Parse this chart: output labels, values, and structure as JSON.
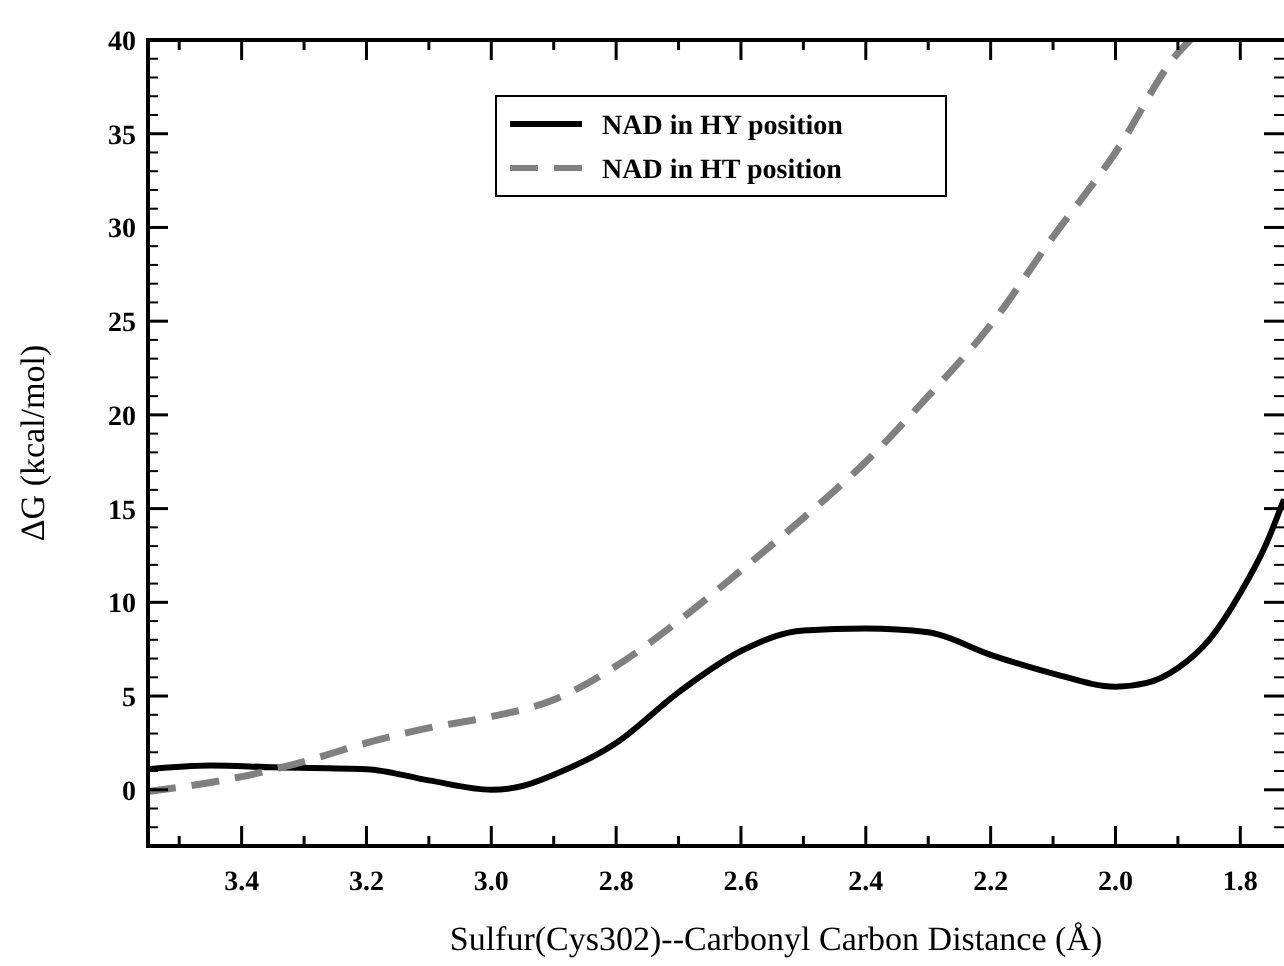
{
  "chart_data": {
    "type": "line",
    "xlabel": "Sulfur(Cys302)--Carbonyl Carbon Distance (Å)",
    "ylabel": "ΔG (kcal/mol)",
    "xlim": [
      3.55,
      1.73
    ],
    "ylim": [
      -3,
      40
    ],
    "xticks": [
      {
        "value": 3.5,
        "label": null
      },
      3.4,
      {
        "value": 3.3,
        "label": null
      },
      3.2,
      {
        "value": 3.1,
        "label": null
      },
      {
        "value": 3.0,
        "label": "3.0"
      },
      {
        "value": 2.9,
        "label": null
      },
      2.8,
      {
        "value": 2.7,
        "label": null
      },
      2.6,
      {
        "value": 2.5,
        "label": null
      },
      2.4,
      {
        "value": 2.3,
        "label": null
      },
      2.2,
      {
        "value": 2.1,
        "label": null
      },
      {
        "value": 2.0,
        "label": "2.0"
      },
      {
        "value": 1.9,
        "label": null
      },
      1.8
    ],
    "yticks": [
      0,
      5,
      10,
      15,
      20,
      25,
      30,
      35,
      40
    ],
    "legend": "top",
    "grid": false,
    "series": [
      {
        "name": "NAD in HY position",
        "color": "#000000",
        "line_style": "solid",
        "x": [
          3.55,
          3.45,
          3.35,
          3.2,
          3.1,
          3.0,
          2.95,
          2.9,
          2.8,
          2.7,
          2.6,
          2.5,
          2.4,
          2.3,
          2.2,
          2.1,
          2.0,
          1.95,
          1.9,
          1.85,
          1.8,
          1.76,
          1.73
        ],
        "values": [
          1.1,
          1.3,
          1.2,
          1.1,
          0.5,
          0.0,
          0.2,
          0.8,
          2.5,
          5.2,
          7.4,
          8.5,
          8.6,
          8.4,
          7.2,
          6.2,
          5.5,
          5.7,
          6.5,
          8.0,
          10.5,
          13,
          15.5
        ]
      },
      {
        "name": "NAD in HT position",
        "color": "#808080",
        "line_style": "dashed",
        "x": [
          3.55,
          3.4,
          3.3,
          3.2,
          3.1,
          3.0,
          2.9,
          2.8,
          2.7,
          2.6,
          2.5,
          2.4,
          2.3,
          2.2,
          2.1,
          2.0,
          1.9,
          1.88
        ],
        "values": [
          -0.1,
          0.7,
          1.5,
          2.5,
          3.3,
          3.9,
          4.8,
          6.6,
          9.0,
          11.7,
          14.5,
          17.5,
          21,
          24.8,
          29.5,
          34,
          39.3,
          40
        ]
      }
    ]
  }
}
